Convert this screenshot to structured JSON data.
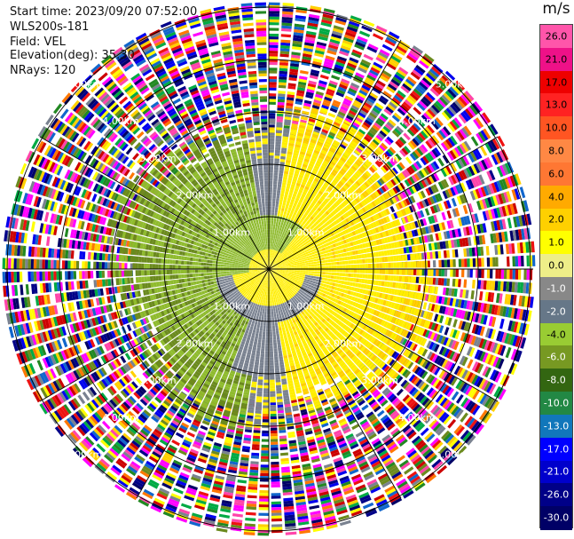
{
  "info": {
    "start_time": "Start time: 2023/09/20 07:52:00",
    "instrument": "WLS200s-181",
    "field": "Field: VEL",
    "elevation": "Elevation(deg): 35.30",
    "nrays": "NRays: 120"
  },
  "colorbar": {
    "unit": "m/s",
    "ticks": [
      "26.0",
      "21.0",
      "17.0",
      "13.0",
      "10.0",
      "8.0",
      "6.0",
      "4.0",
      "2.0",
      "1.0",
      "0.0",
      "-1.0",
      "-2.0",
      "-4.0",
      "-6.0",
      "-8.0",
      "-10.0",
      "-13.0",
      "-17.0",
      "-21.0",
      "-26.0",
      "-30.0"
    ],
    "colors": [
      "#ff55aa",
      "#ee1188",
      "#ee0000",
      "#ff2222",
      "#ff5522",
      "#ff8844",
      "#ff7733",
      "#ffaa00",
      "#ffd000",
      "#ffff00",
      "#eeee88",
      "#888888",
      "#667788",
      "#99cc33",
      "#779922",
      "#336611",
      "#228844",
      "#1177bb",
      "#0000ff",
      "#0000cc",
      "#000088",
      "#000066"
    ]
  },
  "chart_data": {
    "type": "ppi",
    "field": "VEL",
    "nrays": 120,
    "range_rings_km": [
      1.0,
      2.0,
      3.0,
      4.0,
      5.0
    ],
    "ring_labels": [
      "1.00km",
      "2.00km",
      "3.00km",
      "4.00km",
      "5.00km"
    ],
    "vmin": -30.0,
    "vmax": 26.0,
    "colors": {
      "yellow": "#ffee00",
      "gold": "#ffd000",
      "gray": "#7a8290",
      "lightgreen": "#8fbb2e",
      "green": "#6b8a1e",
      "darkgreen": "#2e7d1a"
    },
    "noise_colors": [
      "#ff00ff",
      "#ff44aa",
      "#0000ee",
      "#000088",
      "#ffff00",
      "#ff7700",
      "#ee1111",
      "#00aa44",
      "#6b8a1e",
      "#7a8290",
      "#ffd000",
      "#228822",
      "#1166cc",
      "#ffffff",
      "#000066",
      "#cc0000"
    ]
  }
}
